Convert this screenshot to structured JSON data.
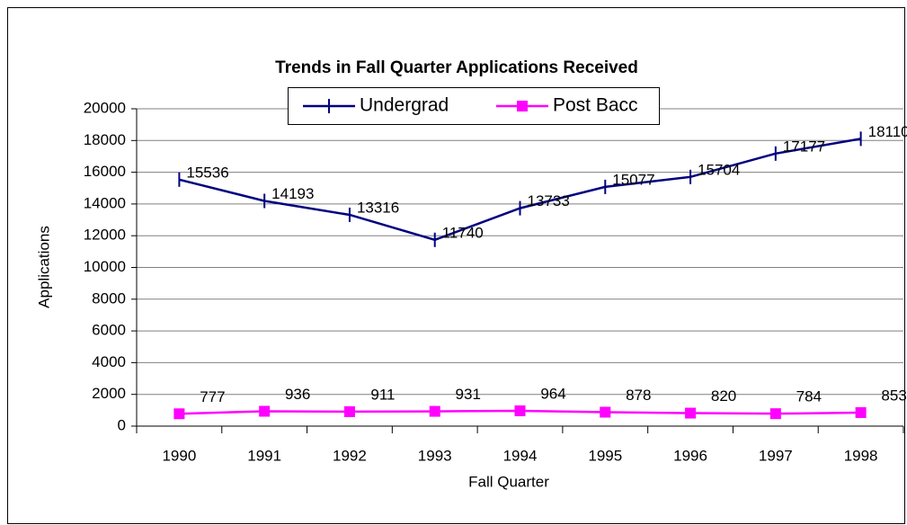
{
  "chart_data": {
    "type": "line",
    "title": "Trends in Fall Quarter Applications Received",
    "x_label": "Fall Quarter",
    "y_label": "Applications",
    "categories": [
      "1990",
      "1991",
      "1992",
      "1993",
      "1994",
      "1995",
      "1996",
      "1997",
      "1998"
    ],
    "series": [
      {
        "name": "Undergrad",
        "color": "#000080",
        "values": [
          15536,
          14193,
          13316,
          11740,
          13733,
          15077,
          15704,
          17177,
          18110
        ]
      },
      {
        "name": "Post Bacc",
        "color": "#ff00ff",
        "values": [
          777,
          936,
          911,
          931,
          964,
          878,
          820,
          784,
          853
        ]
      }
    ],
    "ylim": [
      0,
      20000
    ],
    "yticks": [
      0,
      2000,
      4000,
      6000,
      8000,
      10000,
      12000,
      14000,
      16000,
      18000,
      20000
    ],
    "grid": true,
    "legend": "top"
  }
}
